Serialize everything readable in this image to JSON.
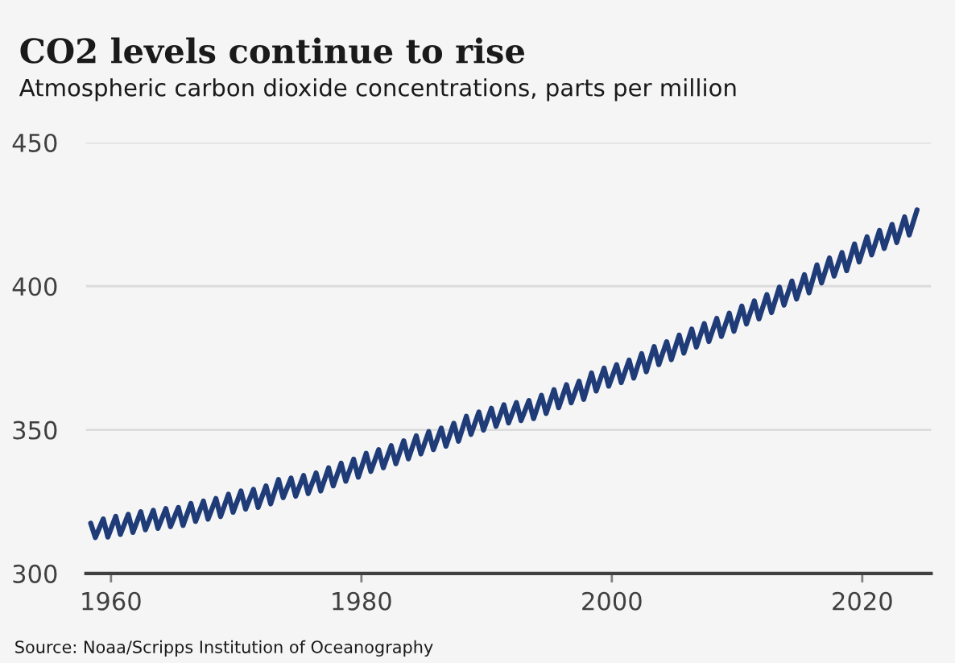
{
  "chart_data": {
    "type": "line",
    "title": "CO2 levels continue to rise",
    "subtitle": "Atmospheric carbon dioxide concentrations, parts per million",
    "annotations": [
      "Source: Noaa/Scripps Institution of Oceanography"
    ],
    "xlim": [
      1958,
      2025.5
    ],
    "xticks": [
      1960,
      1980,
      2000,
      2020
    ],
    "ylim": [
      300,
      450
    ],
    "yticks": [
      300,
      350,
      400,
      450
    ],
    "grid": "y",
    "marker": "none",
    "line_style": "solid",
    "series": [
      {
        "color": "#1f3c78",
        "x": [
          1958.38,
          1958.75,
          1959.38,
          1959.75,
          1960.38,
          1960.75,
          1961.38,
          1961.75,
          1962.38,
          1962.75,
          1963.38,
          1963.75,
          1964.38,
          1964.75,
          1965.38,
          1965.75,
          1966.38,
          1966.75,
          1967.38,
          1967.75,
          1968.38,
          1968.75,
          1969.38,
          1969.75,
          1970.38,
          1970.75,
          1971.38,
          1971.75,
          1972.38,
          1972.75,
          1973.38,
          1973.75,
          1974.38,
          1974.75,
          1975.38,
          1975.75,
          1976.38,
          1976.75,
          1977.38,
          1977.75,
          1978.38,
          1978.75,
          1979.38,
          1979.75,
          1980.38,
          1980.75,
          1981.38,
          1981.75,
          1982.38,
          1982.75,
          1983.38,
          1983.75,
          1984.38,
          1984.75,
          1985.38,
          1985.75,
          1986.38,
          1986.75,
          1987.38,
          1987.75,
          1988.38,
          1988.75,
          1989.38,
          1989.75,
          1990.38,
          1990.75,
          1991.38,
          1991.75,
          1992.38,
          1992.75,
          1993.38,
          1993.75,
          1994.38,
          1994.75,
          1995.38,
          1995.75,
          1996.38,
          1996.75,
          1997.38,
          1997.75,
          1998.38,
          1998.75,
          1999.38,
          1999.75,
          2000.38,
          2000.75,
          2001.38,
          2001.75,
          2002.38,
          2002.75,
          2003.38,
          2003.75,
          2004.38,
          2004.75,
          2005.38,
          2005.75,
          2006.38,
          2006.75,
          2007.38,
          2007.75,
          2008.38,
          2008.75,
          2009.38,
          2009.75,
          2010.38,
          2010.75,
          2011.38,
          2011.75,
          2012.38,
          2012.75,
          2013.38,
          2013.75,
          2014.38,
          2014.75,
          2015.38,
          2015.75,
          2016.38,
          2016.75,
          2017.38,
          2017.75,
          2018.38,
          2018.75,
          2019.38,
          2019.75,
          2020.38,
          2020.75,
          2021.38,
          2021.75,
          2022.38,
          2022.75,
          2023.38,
          2023.75,
          2024.38
        ],
        "values": [
          317.5,
          312.5,
          319.0,
          312.7,
          319.9,
          313.6,
          320.6,
          314.3,
          321.5,
          315.2,
          322.0,
          315.7,
          322.6,
          316.3,
          323.0,
          316.7,
          324.4,
          318.1,
          325.2,
          318.9,
          326.1,
          319.8,
          327.6,
          321.3,
          328.7,
          322.4,
          329.3,
          323.0,
          330.5,
          324.2,
          332.7,
          326.4,
          333.2,
          326.9,
          334.1,
          327.8,
          335.0,
          328.7,
          336.8,
          330.5,
          338.4,
          332.1,
          339.8,
          333.5,
          341.8,
          335.5,
          343.1,
          336.8,
          344.5,
          338.2,
          346.2,
          339.9,
          347.9,
          341.6,
          349.4,
          343.1,
          350.6,
          344.3,
          352.3,
          346.0,
          354.7,
          348.4,
          356.2,
          349.9,
          357.5,
          351.2,
          358.7,
          352.4,
          359.5,
          353.2,
          360.2,
          353.9,
          362.0,
          355.7,
          364.0,
          357.7,
          365.7,
          359.4,
          366.9,
          360.6,
          369.8,
          363.5,
          371.5,
          365.2,
          372.7,
          366.4,
          374.3,
          368.0,
          376.5,
          370.2,
          379.0,
          372.7,
          380.7,
          374.4,
          383.0,
          376.7,
          385.1,
          378.8,
          387.0,
          380.7,
          388.8,
          382.5,
          390.6,
          384.3,
          393.1,
          386.8,
          394.9,
          388.6,
          397.1,
          390.8,
          399.7,
          393.4,
          401.8,
          395.5,
          404.0,
          397.7,
          407.4,
          401.1,
          409.8,
          403.5,
          411.7,
          405.4,
          414.7,
          408.4,
          417.2,
          410.9,
          419.4,
          413.1,
          421.5,
          415.2,
          424.1,
          417.8,
          426.6
        ]
      }
    ]
  }
}
